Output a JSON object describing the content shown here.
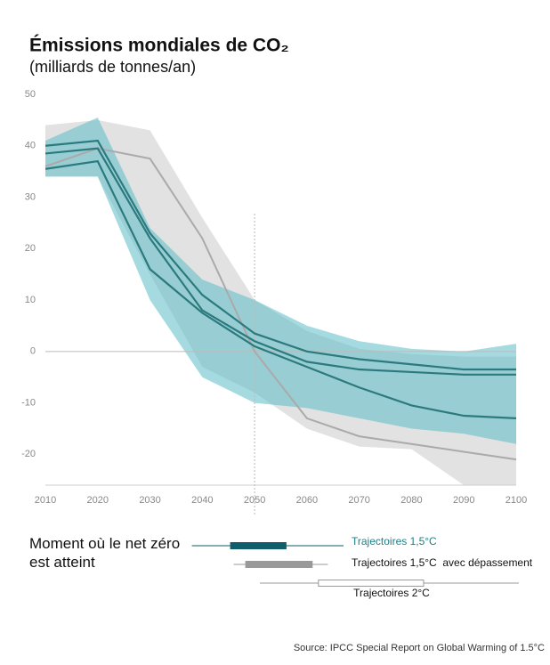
{
  "chart_data": {
    "type": "line",
    "title": "Émissions mondiales de CO₂",
    "subtitle": "(milliards de tonnes/an)",
    "x": [
      2010,
      2020,
      2030,
      2040,
      2050,
      2060,
      2070,
      2080,
      2090,
      2100
    ],
    "xlim": [
      2010,
      2100
    ],
    "xticks": [
      2010,
      2020,
      2030,
      2040,
      2050,
      2060,
      2070,
      2080,
      2090,
      2100
    ],
    "ylim": [
      -26,
      50
    ],
    "yticks": [
      -20,
      -10,
      0,
      10,
      20,
      30,
      40,
      50
    ],
    "zero_line": true,
    "vline": 2050,
    "bands": [
      {
        "color": "#cfcfcf",
        "upper": [
          44,
          45,
          43,
          26,
          10,
          4,
          0.5,
          -0.5,
          -1,
          -1
        ],
        "lower": [
          34,
          34,
          15,
          -3,
          -8,
          -15,
          -18.5,
          -19,
          -26,
          -26
        ]
      },
      {
        "color": "#5bbdc7",
        "upper": [
          41,
          45.5,
          24,
          14,
          10,
          5,
          2,
          0.5,
          0,
          1.5
        ],
        "lower": [
          34,
          34,
          10,
          -5,
          -10,
          -11,
          -13,
          -15,
          -16,
          -18
        ]
      }
    ],
    "series": [
      {
        "color": "#aaaaaa",
        "values": [
          36,
          39.5,
          37.5,
          22,
          0,
          -13,
          -16.5,
          -18,
          -19.5,
          -21
        ]
      },
      {
        "color": "#2b7a7e",
        "values": [
          40,
          41,
          23,
          11,
          3.5,
          0,
          -1.5,
          -2.5,
          -3.5,
          -3.5
        ]
      },
      {
        "color": "#2b7a7e",
        "values": [
          38.5,
          39.5,
          22,
          8,
          2,
          -2,
          -3.5,
          -4,
          -4.5,
          -4.5
        ]
      },
      {
        "color": "#2b7a7e",
        "values": [
          35.5,
          37,
          16,
          7.5,
          1,
          -3,
          -7,
          -10.5,
          -12.5,
          -13
        ]
      }
    ],
    "net_zero": {
      "label": "Moment où le net zéro est atteint",
      "ranges": [
        {
          "name": "Trajectoires 1,5°C",
          "color": "#0e5f6b",
          "fill": "#0e5f6b",
          "text_color": "#1f7f86",
          "whisker": [
            2038,
            2067
          ],
          "box": [
            2045.4,
            2056
          ]
        },
        {
          "name": "Trajectoires 1,5°C  avec dépassement",
          "color": "#999999",
          "fill": "#999999",
          "text_color": "#111111",
          "whisker": [
            2046,
            2064
          ],
          "box": [
            2048.3,
            2061
          ]
        },
        {
          "name": "Trajectoires 2°C",
          "color": "#999999",
          "fill": "#ffffff",
          "text_color": "#111111",
          "whisker": [
            2051,
            2100.5
          ],
          "box": [
            2062.2,
            2082.3
          ]
        }
      ]
    },
    "source": "Source: IPCC Special Report on Global Warming of 1.5°C"
  }
}
